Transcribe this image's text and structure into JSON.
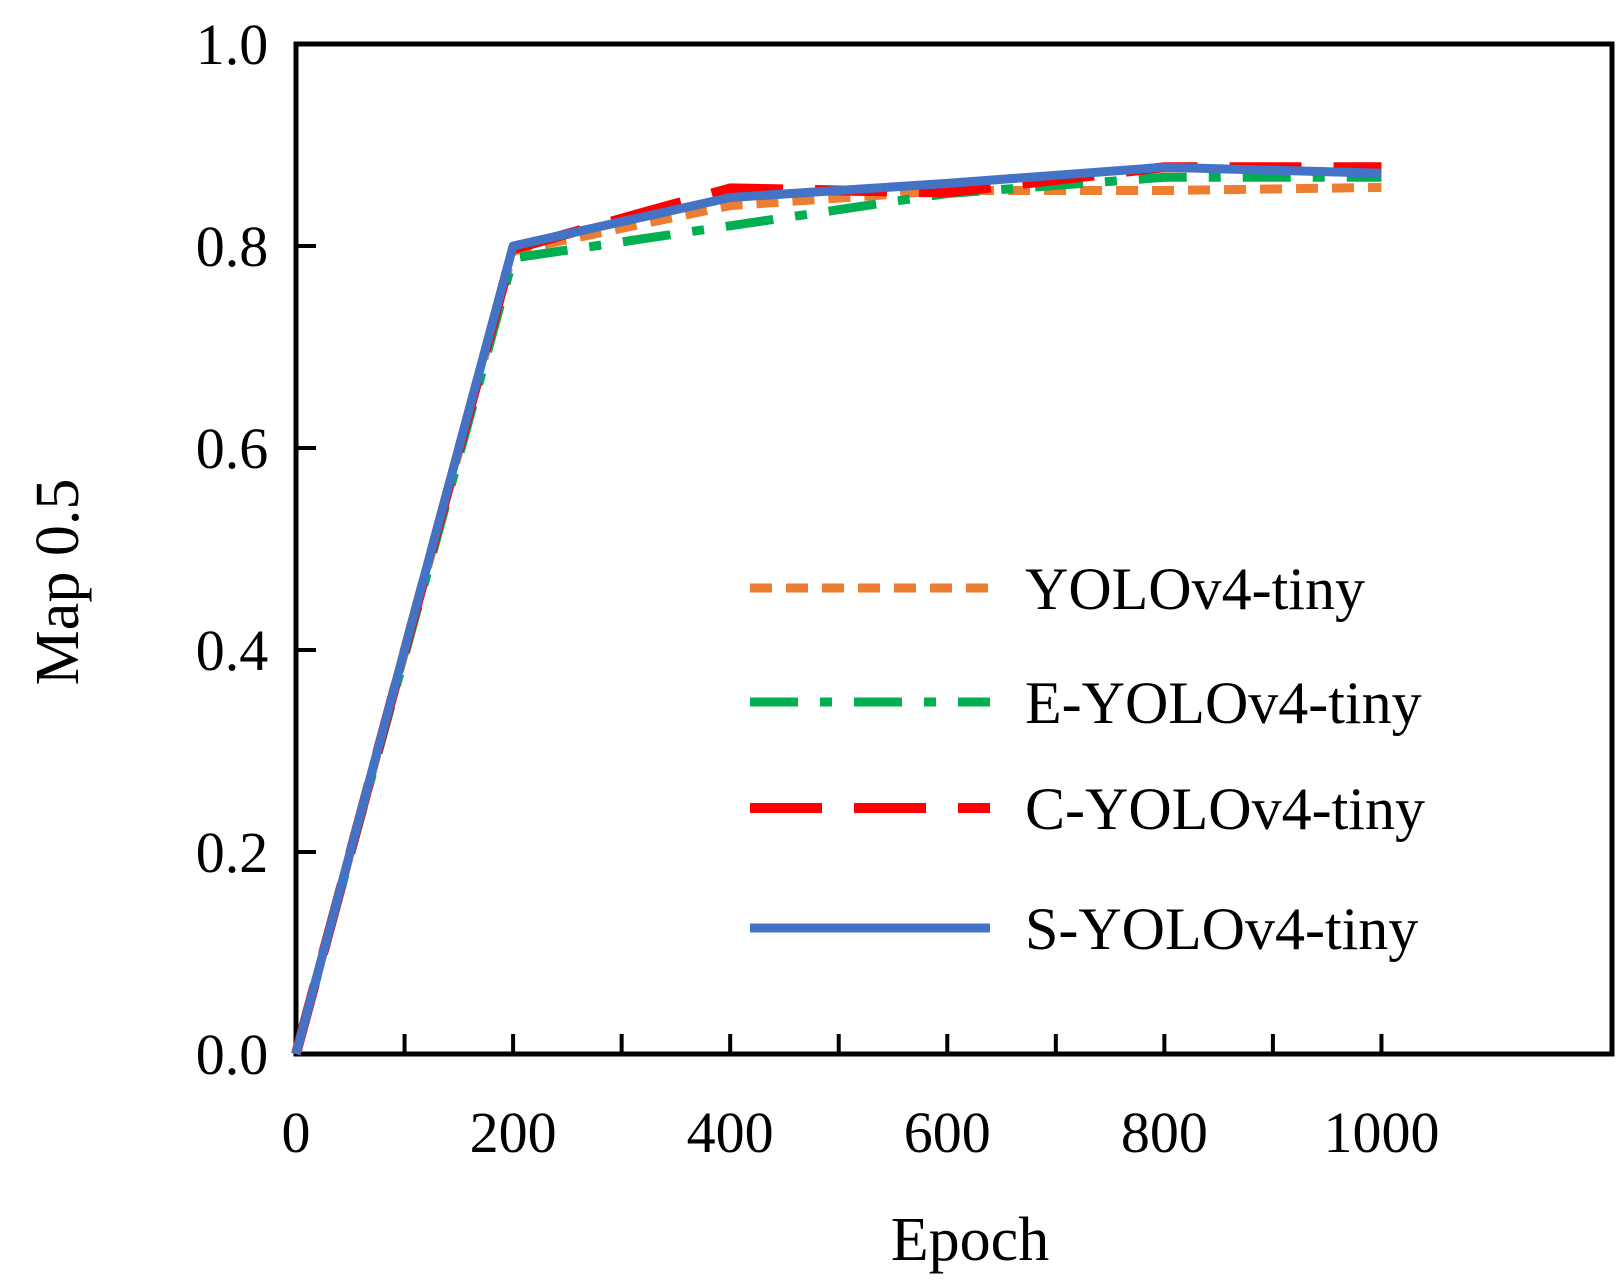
{
  "chart_data": {
    "type": "line",
    "title": "",
    "xlabel": "Epoch",
    "ylabel": "Map 0.5",
    "xlim": [
      0,
      1100
    ],
    "ylim": [
      0,
      1.0
    ],
    "xticks": [
      0,
      200,
      400,
      600,
      800,
      1000
    ],
    "xtick_labels": [
      "0",
      "200",
      "400",
      "600",
      "800",
      "1000"
    ],
    "xminor_ticks": [
      100,
      300,
      500,
      700,
      900,
      1000
    ],
    "yticks": [
      0.0,
      0.2,
      0.4,
      0.6,
      0.8,
      1.0
    ],
    "ytick_labels": [
      "0.0",
      "0.2",
      "0.4",
      "0.6",
      "0.8",
      "1.0"
    ],
    "grid": false,
    "legend_position": "right",
    "x": [
      0,
      200,
      400,
      600,
      800,
      1000
    ],
    "series": [
      {
        "name": "YOLOv4-tiny",
        "color": "#ed7d31",
        "dash": "short-dash",
        "values": [
          0.0,
          0.795,
          0.84,
          0.855,
          0.855,
          0.858
        ]
      },
      {
        "name": "E-YOLOv4-tiny",
        "color": "#00b050",
        "dash": "dash-dot",
        "values": [
          0.0,
          0.788,
          0.82,
          0.852,
          0.868,
          0.868
        ]
      },
      {
        "name": "C-YOLOv4-tiny",
        "color": "#ff0000",
        "dash": "long-dash",
        "values": [
          0.0,
          0.797,
          0.857,
          0.853,
          0.878,
          0.878
        ]
      },
      {
        "name": "S-YOLOv4-tiny",
        "color": "#4472c4",
        "dash": "solid",
        "values": [
          0.0,
          0.8,
          0.848,
          0.862,
          0.878,
          0.872
        ]
      }
    ]
  }
}
